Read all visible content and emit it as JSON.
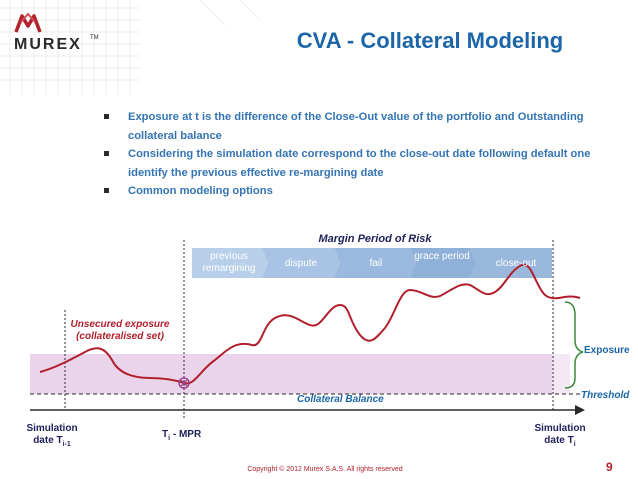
{
  "header": {
    "logo_text": "MUREX",
    "logo_tm": "TM",
    "title": "CVA - Collateral Modeling"
  },
  "bullets": [
    "Exposure at t is the difference of the Close-Out value of the portfolio and Outstanding collateral balance",
    "Considering the simulation date correspond to the close-out date following default one identify the previous effective re-margining date",
    "Common modeling options"
  ],
  "diagram": {
    "margin_period_label": "Margin Period of Risk",
    "segments": [
      "previous remargining",
      "dispute",
      "fail",
      "grace period",
      "close-out"
    ],
    "unsecured_label": "Unsecured exposure (collateralised set)",
    "exposure_label": "Exposure",
    "threshold_label": "Threshold",
    "collateral_label": "Collateral Balance",
    "left_label_1": "Simulation",
    "left_label_2": "date T",
    "left_sub": "i-1",
    "mid_label": "T",
    "mid_sub": "i",
    "mid_suffix": " - MPR",
    "right_label_1": "Simulation",
    "right_label_2": "date T",
    "right_sub": "i",
    "colors": {
      "segments": "#a8c3e3",
      "exposure_line": "#b21f2d",
      "shade": "#ead4ea",
      "threshold": "#2a2a2a"
    }
  },
  "footer": {
    "copyright": "Copyright © 2012 Murex S.A.S. All rights reserved",
    "page_number": "9"
  }
}
